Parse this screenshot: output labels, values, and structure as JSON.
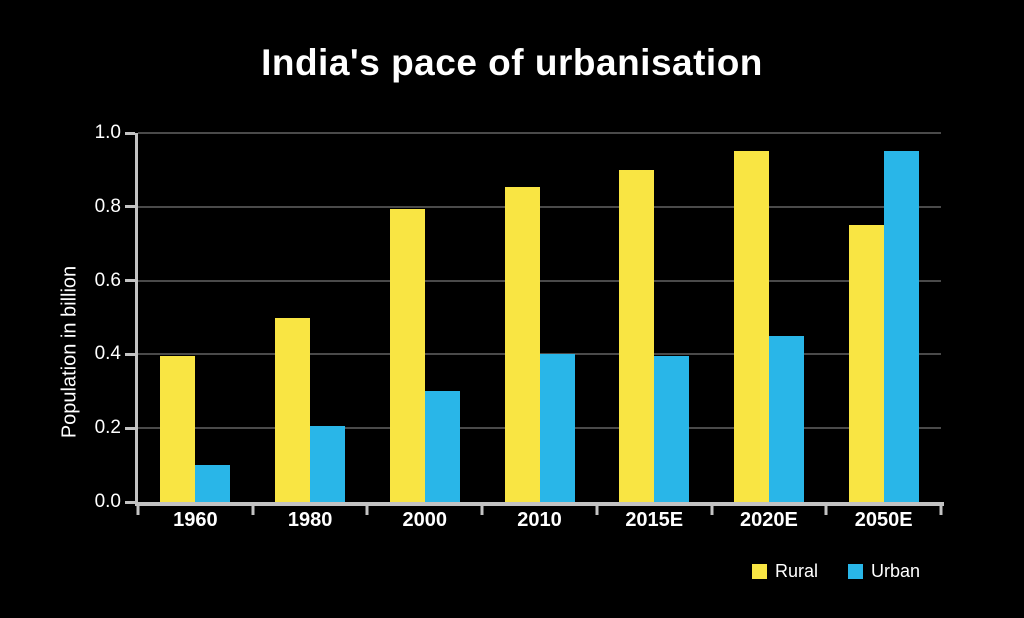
{
  "title": "India's pace of urbanisation",
  "colors": {
    "background": "#000000",
    "text": "#ffffff",
    "axis": "#c3c3c3",
    "gridline": "#4a4a4a",
    "rural": "#f9e543",
    "urban": "#29b6e8"
  },
  "chart_data": {
    "type": "bar",
    "title": "India's pace of urbanisation",
    "categories": [
      "1960",
      "1980",
      "2000",
      "2010",
      "2015E",
      "2020E",
      "2050E"
    ],
    "series": [
      {
        "name": "Rural",
        "color": "#f9e543",
        "values": [
          0.395,
          0.5,
          0.795,
          0.855,
          0.9,
          0.95,
          0.75
        ]
      },
      {
        "name": "Urban",
        "color": "#29b6e8",
        "values": [
          0.1,
          0.205,
          0.3,
          0.4,
          0.395,
          0.45,
          0.95
        ]
      }
    ],
    "xlabel": "",
    "ylabel": "Population in billion",
    "ylim": [
      0,
      1.0
    ],
    "y_ticks": [
      "0.0",
      "0.2",
      "0.4",
      "0.6",
      "0.8",
      "1.0"
    ],
    "grid": true,
    "legend_position": "bottom-right",
    "legend": [
      "Rural",
      "Urban"
    ]
  }
}
